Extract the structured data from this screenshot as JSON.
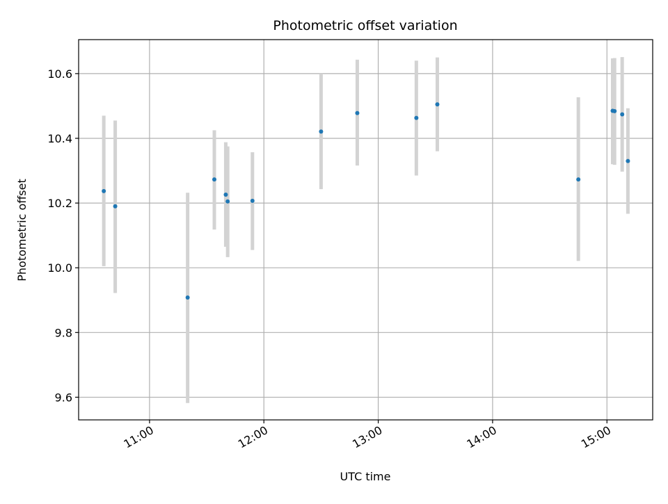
{
  "chart_data": {
    "type": "scatter",
    "title": "Photometric offset variation",
    "xlabel": "UTC time",
    "ylabel": "Photometric offset",
    "x_tick_labels": [
      "11:00",
      "12:00",
      "13:00",
      "14:00",
      "15:00"
    ],
    "x_tick_hours": [
      11,
      12,
      13,
      14,
      15
    ],
    "y_tick_labels": [
      "9.6",
      "9.8",
      "10.0",
      "10.2",
      "10.4",
      "10.6"
    ],
    "y_tick_values": [
      9.6,
      9.8,
      10.0,
      10.2,
      10.4,
      10.6
    ],
    "xlim_hours": [
      10.38,
      15.4
    ],
    "ylim": [
      9.53,
      10.705
    ],
    "grid": true,
    "colors": {
      "marker": "#1f77b4",
      "errorbar": "#d3d3d3",
      "grid": "#b0b0b0"
    },
    "series": [
      {
        "points": [
          {
            "time": "10:36",
            "y": 10.237,
            "y_low": 10.005,
            "y_high": 10.47
          },
          {
            "time": "10:42",
            "y": 10.19,
            "y_low": 9.922,
            "y_high": 10.455
          },
          {
            "time": "11:20",
            "y": 9.908,
            "y_low": 9.582,
            "y_high": 10.232
          },
          {
            "time": "11:34",
            "y": 10.273,
            "y_low": 10.118,
            "y_high": 10.425
          },
          {
            "time": "11:40",
            "y": 10.226,
            "y_low": 10.065,
            "y_high": 10.388
          },
          {
            "time": "11:41",
            "y": 10.205,
            "y_low": 10.033,
            "y_high": 10.375
          },
          {
            "time": "11:54",
            "y": 10.207,
            "y_low": 10.055,
            "y_high": 10.357
          },
          {
            "time": "12:30",
            "y": 10.421,
            "y_low": 10.243,
            "y_high": 10.6
          },
          {
            "time": "12:49",
            "y": 10.478,
            "y_low": 10.316,
            "y_high": 10.643
          },
          {
            "time": "13:20",
            "y": 10.463,
            "y_low": 10.285,
            "y_high": 10.64
          },
          {
            "time": "13:31",
            "y": 10.505,
            "y_low": 10.36,
            "y_high": 10.65
          },
          {
            "time": "14:45",
            "y": 10.273,
            "y_low": 10.021,
            "y_high": 10.527
          },
          {
            "time": "15:03",
            "y": 10.485,
            "y_low": 10.32,
            "y_high": 10.647
          },
          {
            "time": "15:04",
            "y": 10.484,
            "y_low": 10.318,
            "y_high": 10.648
          },
          {
            "time": "15:08",
            "y": 10.474,
            "y_low": 10.297,
            "y_high": 10.651
          },
          {
            "time": "15:11",
            "y": 10.33,
            "y_low": 10.167,
            "y_high": 10.493
          }
        ]
      }
    ]
  }
}
